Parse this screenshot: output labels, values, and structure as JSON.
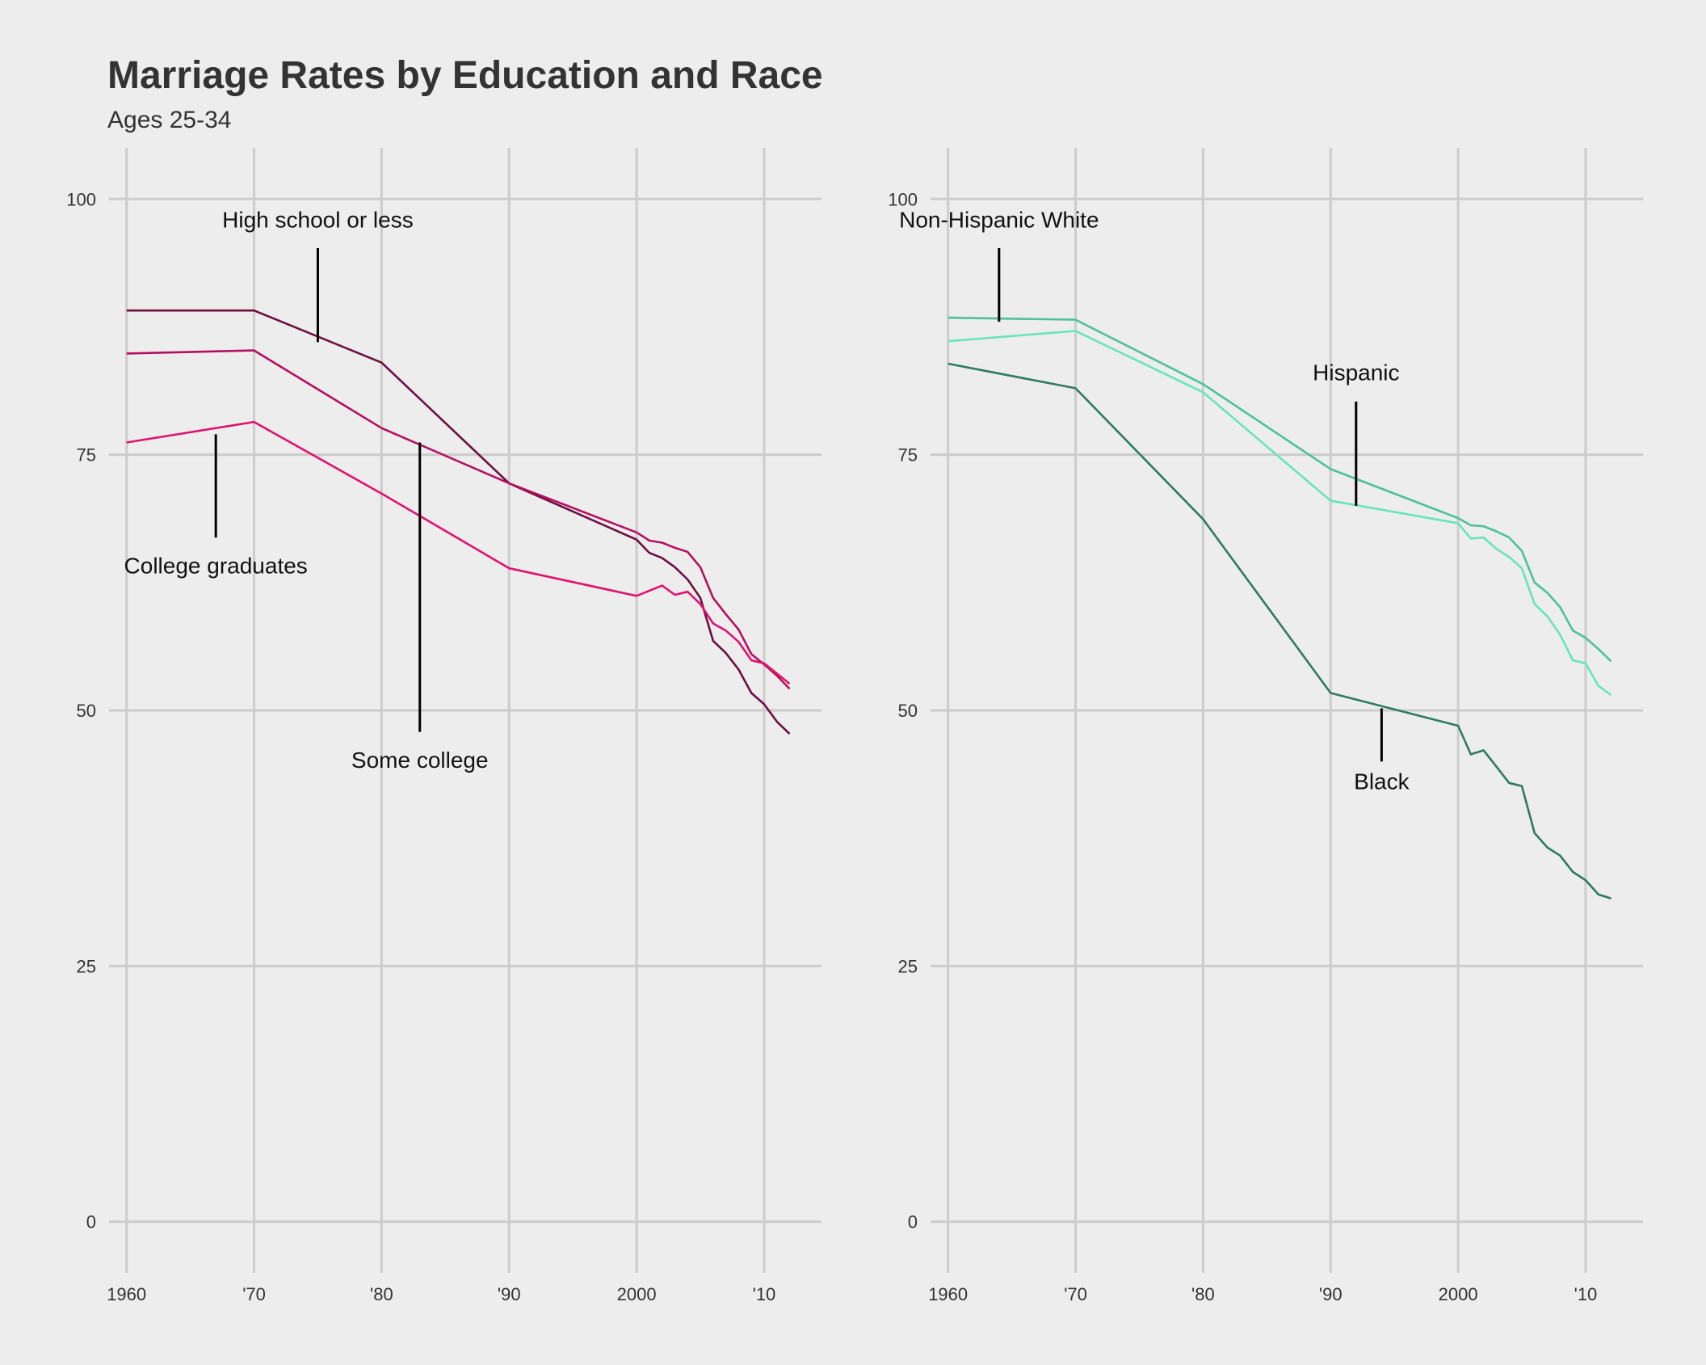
{
  "title": "Marriage Rates by Education and Race",
  "subtitle": "Ages 25-34",
  "chart_data": [
    {
      "type": "line",
      "x_tick_labels": [
        "1960",
        "'70",
        "'80",
        "'90",
        "2000",
        "'10"
      ],
      "x_ticks": [
        1960,
        1970,
        1980,
        1990,
        2000,
        2010
      ],
      "y_ticks": [
        0,
        25,
        50,
        75,
        100
      ],
      "xlim": [
        1958.5,
        2014.5
      ],
      "ylim": [
        -5,
        105
      ],
      "grid": true,
      "series": [
        {
          "name": "High school or less",
          "color": "#6b0f3f",
          "x": [
            1960,
            1970,
            1980,
            1990,
            2000,
            2001,
            2002,
            2003,
            2004,
            2005,
            2006,
            2007,
            2008,
            2009,
            2010,
            2011,
            2012
          ],
          "y": [
            89.1,
            89.1,
            84.0,
            72.2,
            66.7,
            65.4,
            64.9,
            64.0,
            62.8,
            61.0,
            56.8,
            55.6,
            54.0,
            51.7,
            50.6,
            48.9,
            47.7
          ]
        },
        {
          "name": "Some college",
          "color": "#b5105f",
          "x": [
            1960,
            1970,
            1980,
            1990,
            2000,
            2001,
            2002,
            2003,
            2004,
            2005,
            2006,
            2007,
            2008,
            2009,
            2010,
            2011,
            2012
          ],
          "y": [
            84.9,
            85.2,
            77.6,
            72.2,
            67.4,
            66.6,
            66.4,
            65.9,
            65.5,
            64.0,
            61.0,
            59.4,
            57.9,
            55.5,
            54.5,
            53.4,
            52.1
          ]
        },
        {
          "name": "College graduates",
          "color": "#e0126f",
          "x": [
            1960,
            1970,
            1980,
            1990,
            2000,
            2001,
            2002,
            2003,
            2004,
            2005,
            2006,
            2007,
            2008,
            2009,
            2010,
            2011,
            2012
          ],
          "y": [
            76.2,
            78.2,
            71.2,
            63.9,
            61.2,
            61.7,
            62.2,
            61.3,
            61.6,
            60.4,
            58.5,
            57.8,
            56.7,
            54.9,
            54.6,
            53.6,
            52.6
          ]
        }
      ],
      "annotations": [
        {
          "text": "High school or less",
          "x": 1975,
          "y": 97.2,
          "line": [
            1975,
            86.0,
            1975,
            95.2
          ]
        },
        {
          "text": "College graduates",
          "x": 1967,
          "y": 63.4,
          "line": [
            1967,
            66.9,
            1967,
            77.0
          ]
        },
        {
          "text": "Some college",
          "x": 1983,
          "y": 44.4,
          "line": [
            1983,
            47.9,
            1983,
            76.2
          ]
        }
      ]
    },
    {
      "type": "line",
      "x_tick_labels": [
        "1960",
        "'70",
        "'80",
        "'90",
        "2000",
        "'10"
      ],
      "x_ticks": [
        1960,
        1970,
        1980,
        1990,
        2000,
        2010
      ],
      "y_ticks": [
        0,
        25,
        50,
        75,
        100
      ],
      "xlim": [
        1958.5,
        2014.5
      ],
      "ylim": [
        -5,
        105
      ],
      "grid": true,
      "series": [
        {
          "name": "Non-Hispanic White",
          "color": "#4cc298",
          "x": [
            1960,
            1970,
            1980,
            1990,
            2000,
            2001,
            2002,
            2003,
            2004,
            2005,
            2006,
            2007,
            2008,
            2009,
            2010,
            2011,
            2012
          ],
          "y": [
            88.4,
            88.2,
            81.9,
            73.6,
            68.8,
            68.1,
            68.0,
            67.5,
            66.9,
            65.6,
            62.5,
            61.5,
            60.1,
            57.8,
            57.1,
            56.0,
            54.8
          ]
        },
        {
          "name": "Hispanic",
          "color": "#66e6b8",
          "x": [
            1960,
            1970,
            1980,
            1990,
            2000,
            2001,
            2002,
            2003,
            2004,
            2005,
            2006,
            2007,
            2008,
            2009,
            2010,
            2011,
            2012
          ],
          "y": [
            86.1,
            87.1,
            81.1,
            70.5,
            68.3,
            66.8,
            66.9,
            65.8,
            65.0,
            63.9,
            60.4,
            59.2,
            57.4,
            54.9,
            54.6,
            52.4,
            51.5
          ]
        },
        {
          "name": "Black",
          "color": "#2e7a60",
          "x": [
            1960,
            1970,
            1980,
            1990,
            2000,
            2001,
            2002,
            2003,
            2004,
            2005,
            2006,
            2007,
            2008,
            2009,
            2010,
            2011,
            2012
          ],
          "y": [
            83.9,
            81.5,
            68.7,
            51.7,
            48.5,
            45.7,
            46.1,
            44.5,
            42.9,
            42.6,
            38.0,
            36.6,
            35.8,
            34.2,
            33.4,
            32.0,
            31.6
          ]
        }
      ],
      "annotations": [
        {
          "text": "Non-Hispanic White",
          "x": 1964,
          "y": 97.2,
          "line": [
            1964,
            88.0,
            1964,
            95.2
          ]
        },
        {
          "text": "Hispanic",
          "x": 1992,
          "y": 82.3,
          "line": [
            1992,
            70.0,
            1992,
            80.2
          ]
        },
        {
          "text": "Black",
          "x": 1994,
          "y": 42.3,
          "line": [
            1994,
            45.0,
            1994,
            50.2
          ]
        }
      ]
    }
  ]
}
